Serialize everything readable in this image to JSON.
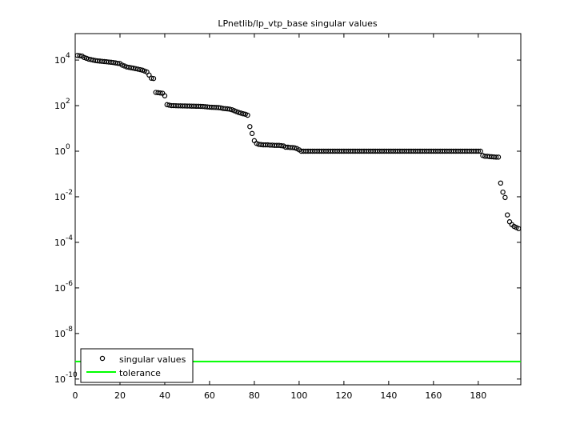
{
  "chart_data": {
    "type": "scatter",
    "title": "LPnetlib/lp_vtp_base singular values",
    "log_y": true,
    "legend_corner": "lower left",
    "xlim": [
      0,
      199
    ],
    "xticks": [
      0,
      20,
      40,
      60,
      80,
      100,
      120,
      140,
      160,
      180
    ],
    "ylim": [
      5.6e-11,
      145000
    ],
    "yticks": [
      {
        "value": 1e-10,
        "label": "10^-10"
      },
      {
        "value": 1e-08,
        "label": "10^-8"
      },
      {
        "value": 1e-06,
        "label": "10^-6"
      },
      {
        "value": 0.0001,
        "label": "10^-4"
      },
      {
        "value": 0.01,
        "label": "10^-2"
      },
      {
        "value": 1,
        "label": "10^0"
      },
      {
        "value": 100,
        "label": "10^2"
      },
      {
        "value": 10000,
        "label": "10^4"
      }
    ],
    "series": [
      {
        "name": "singular values",
        "color": "#000000",
        "x": [
          1,
          2,
          3,
          4,
          5,
          6,
          7,
          8,
          9,
          10,
          11,
          12,
          13,
          14,
          15,
          16,
          17,
          18,
          19,
          20,
          21,
          22,
          23,
          24,
          25,
          26,
          27,
          28,
          29,
          30,
          31,
          32,
          33,
          34,
          35,
          36,
          37,
          38,
          39,
          40,
          41,
          42,
          43,
          44,
          45,
          46,
          47,
          48,
          49,
          50,
          51,
          52,
          53,
          54,
          55,
          56,
          57,
          58,
          59,
          60,
          61,
          62,
          63,
          64,
          65,
          66,
          67,
          68,
          69,
          70,
          71,
          72,
          73,
          74,
          75,
          76,
          77,
          78,
          79,
          80,
          81,
          82,
          83,
          84,
          85,
          86,
          87,
          88,
          89,
          90,
          91,
          92,
          93,
          94,
          95,
          96,
          97,
          98,
          99,
          100,
          101,
          102,
          103,
          104,
          105,
          106,
          107,
          108,
          109,
          110,
          111,
          112,
          113,
          114,
          115,
          116,
          117,
          118,
          119,
          120,
          121,
          122,
          123,
          124,
          125,
          126,
          127,
          128,
          129,
          130,
          131,
          132,
          133,
          134,
          135,
          136,
          137,
          138,
          139,
          140,
          141,
          142,
          143,
          144,
          145,
          146,
          147,
          148,
          149,
          150,
          151,
          152,
          153,
          154,
          155,
          156,
          157,
          158,
          159,
          160,
          161,
          162,
          163,
          164,
          165,
          166,
          167,
          168,
          169,
          170,
          171,
          172,
          173,
          174,
          175,
          176,
          177,
          178,
          179,
          180,
          181,
          182,
          183,
          184,
          185,
          186,
          187,
          188,
          189,
          190,
          191,
          192,
          193,
          194,
          195,
          196,
          197,
          198
        ],
        "values": [
          16000,
          15500,
          15000,
          13000,
          12000,
          11000,
          10500,
          10000,
          9500,
          9200,
          9000,
          8800,
          8600,
          8400,
          8200,
          8000,
          7800,
          7500,
          7200,
          7000,
          6000,
          5500,
          5000,
          4800,
          4600,
          4400,
          4200,
          4000,
          3800,
          3600,
          3300,
          3000,
          2200,
          1600,
          1550,
          380,
          370,
          360,
          350,
          270,
          110,
          105,
          100,
          100,
          99,
          98,
          98,
          97,
          97,
          96,
          96,
          95,
          95,
          94,
          94,
          93,
          92,
          90,
          88,
          86,
          85,
          84,
          83,
          82,
          80,
          75,
          74,
          72,
          70,
          66,
          60,
          55,
          50,
          47,
          44,
          42,
          38,
          12,
          6,
          2.9,
          2.2,
          2.0,
          1.95,
          1.9,
          1.9,
          1.9,
          1.85,
          1.85,
          1.8,
          1.8,
          1.8,
          1.75,
          1.7,
          1.5,
          1.5,
          1.45,
          1.45,
          1.4,
          1.3,
          1.15,
          1,
          1,
          1,
          1,
          1,
          1,
          1,
          1,
          1,
          1,
          1,
          1,
          1,
          1,
          1,
          1,
          1,
          1,
          1,
          1,
          1,
          1,
          1,
          1,
          1,
          1,
          1,
          1,
          1,
          1,
          1,
          1,
          1,
          1,
          1,
          1,
          1,
          1,
          1,
          1,
          1,
          1,
          1,
          1,
          1,
          1,
          1,
          1,
          1,
          1,
          1,
          1,
          1,
          1,
          1,
          1,
          1,
          1,
          1,
          1,
          1,
          1,
          1,
          1,
          1,
          1,
          1,
          1,
          1,
          1,
          1,
          1,
          1,
          1,
          1,
          1,
          1,
          1,
          1,
          1,
          1,
          0.65,
          0.6,
          0.6,
          0.58,
          0.57,
          0.56,
          0.55,
          0.55,
          0.04,
          0.016,
          0.0093,
          0.0016,
          0.0008,
          0.0006,
          0.0005,
          0.00045,
          0.0004
        ]
      }
    ],
    "tolerance": {
      "name": "tolerance",
      "color": "#00ff00",
      "value": 5.9e-10
    }
  }
}
